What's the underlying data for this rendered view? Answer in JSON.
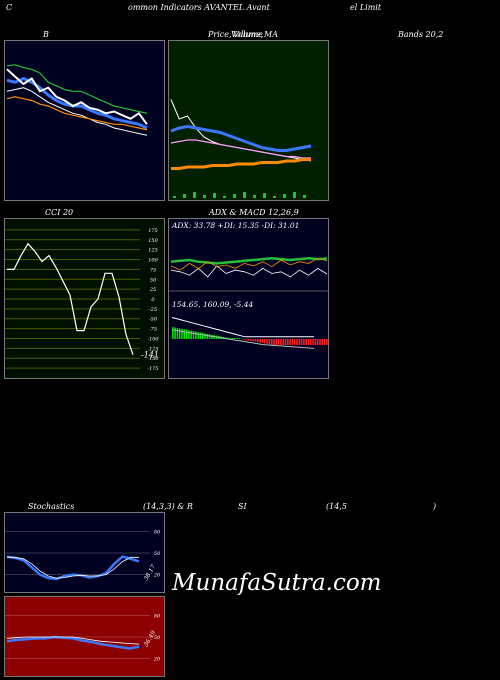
{
  "header": {
    "c": "C",
    "title_mid": "ommon  Indicators AVANTEL Avant",
    "title_right": "el Limit"
  },
  "labels": {
    "bands_b": "B",
    "price_a": "Price,",
    "price_b": "Volume,",
    "price_c": "Volume",
    "price_ma": "MA",
    "bands_val": "Bands 20,2",
    "cci": "CCI 20",
    "adx_title": "ADX  & MACD 12,26,9",
    "adx_values": "ADX: 33.78  +DI: 15.35 -DI: 31.01",
    "macd_values": "154.65,  160.09,  -5.44",
    "stoch": "Stochastics",
    "stoch_params": "(14,3,3) & R",
    "rsi": "SI",
    "rsi_params": "(14,5",
    "rsi_close": ")",
    "cci_value": "-141",
    "stoch_value": "38.17",
    "rsi_value": "36.49",
    "brand": "MunafaSutra.com"
  },
  "colors": {
    "bg": "#000000",
    "bb_bg": "#000020",
    "pv_bg": "#002000",
    "cci_bg": "#001000",
    "cci_grid": "#4a5a00",
    "stoch_bg": "#000020",
    "rsi_bg": "#8b0000",
    "green_line": "#22c03a",
    "blue_line": "#3a78ff",
    "orange_line": "#ff8c00"
  },
  "chart_data": [
    {
      "type": "line",
      "title": "Bollinger Bands 20,2",
      "series": [
        {
          "values": [
            172,
            172.5,
            171,
            170,
            168,
            163,
            161,
            159,
            158,
            158,
            156,
            154,
            152,
            150,
            149,
            148,
            147,
            146
          ]
        },
        {
          "values": [
            164,
            163,
            165,
            163,
            160,
            156,
            153,
            151,
            150,
            150,
            148,
            146,
            145,
            143,
            142,
            141,
            140,
            138
          ]
        },
        {
          "values": [
            158,
            159,
            160,
            158,
            155,
            152,
            150,
            148,
            146,
            145,
            143,
            141,
            140,
            138,
            137,
            136,
            135,
            134
          ]
        },
        {
          "values": [
            154,
            155,
            154,
            153,
            151,
            150,
            148,
            146,
            145,
            144,
            143,
            142,
            141,
            140,
            140,
            139,
            138,
            137
          ]
        },
        {
          "values": [
            170,
            166,
            162,
            165,
            158,
            160,
            155,
            153,
            150,
            152,
            149,
            148,
            146,
            147,
            145,
            143,
            146,
            140
          ]
        }
      ]
    },
    {
      "type": "line",
      "title": "Price, Volume, MA",
      "series": [
        {
          "values": [
            171,
            158,
            160,
            152,
            146,
            143,
            141,
            140,
            139,
            138,
            137,
            136,
            135,
            134,
            133,
            132,
            131,
            130
          ]
        },
        {
          "values": [
            150,
            152,
            153,
            152,
            151,
            150,
            149,
            147,
            145,
            143,
            141,
            139,
            138,
            137,
            137,
            138,
            139,
            140
          ]
        },
        {
          "values": [
            142,
            143,
            144,
            144,
            143,
            142,
            141,
            140,
            139,
            138,
            137,
            136,
            135,
            134,
            133,
            133,
            132,
            132
          ]
        },
        {
          "values": [
            125,
            125,
            126,
            126,
            126,
            127,
            127,
            127,
            128,
            128,
            128,
            129,
            129,
            129,
            130,
            130,
            131,
            131
          ]
        }
      ]
    },
    {
      "type": "line",
      "title": "CCI 20",
      "yticks": [
        175,
        150,
        125,
        100,
        75,
        50,
        25,
        0,
        -25,
        -50,
        -75,
        -100,
        -125,
        -150,
        -175
      ],
      "ylim": [
        -175,
        175
      ],
      "series": [
        {
          "values": [
            75,
            75,
            110,
            140,
            120,
            95,
            110,
            80,
            45,
            10,
            -80,
            -80,
            -20,
            0,
            65,
            65,
            5,
            -90,
            -141
          ]
        }
      ]
    },
    {
      "type": "line",
      "title": "ADX & MACD 12,26,9",
      "series": [
        {
          "name": "ADX",
          "values": [
            30,
            31,
            32,
            30,
            29,
            28,
            29,
            30,
            31,
            32,
            33,
            34,
            33,
            32,
            33,
            34,
            33,
            33.78
          ]
        },
        {
          "name": "+DI",
          "values": [
            20,
            18,
            14,
            22,
            12,
            25,
            16,
            20,
            18,
            14,
            22,
            16,
            18,
            12,
            20,
            14,
            22,
            15.35
          ]
        },
        {
          "name": "-DI",
          "values": [
            25,
            20,
            28,
            22,
            30,
            24,
            26,
            22,
            28,
            25,
            30,
            24,
            32,
            26,
            30,
            28,
            34,
            31.01
          ]
        }
      ]
    },
    {
      "type": "line",
      "title": "Stochastics (14,3,3)",
      "yticks": [
        80,
        50,
        20
      ],
      "ylim": [
        0,
        100
      ],
      "series": [
        {
          "values": [
            45,
            43,
            40,
            30,
            20,
            15,
            14,
            18,
            20,
            19,
            16,
            18,
            22,
            35,
            45,
            42,
            38.17
          ]
        },
        {
          "values": [
            44,
            44,
            42,
            35,
            25,
            18,
            15,
            16,
            18,
            19,
            18,
            18,
            20,
            28,
            38,
            44,
            44
          ]
        }
      ]
    },
    {
      "type": "line",
      "title": "RSI (14,5)",
      "yticks": [
        80,
        50,
        20
      ],
      "ylim": [
        0,
        100
      ],
      "series": [
        {
          "values": [
            44,
            46,
            47,
            48,
            48,
            50,
            49,
            48,
            45,
            43,
            40,
            38,
            36,
            34,
            36.49
          ]
        },
        {
          "values": [
            48,
            49,
            50,
            50,
            50,
            50,
            50,
            50,
            48,
            46,
            44,
            43,
            42,
            41,
            40
          ]
        }
      ]
    }
  ]
}
